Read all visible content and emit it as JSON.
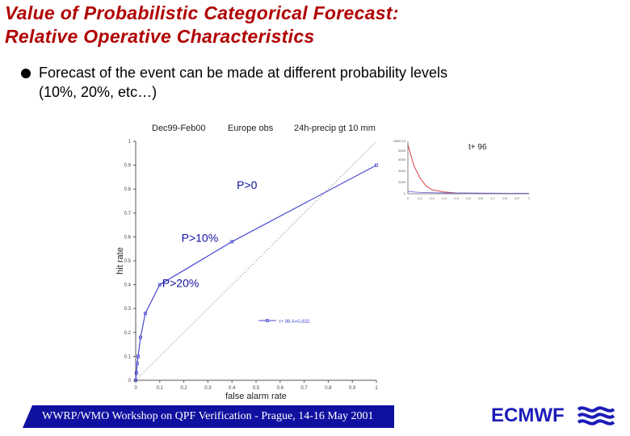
{
  "slide": {
    "title_line1": "Value of Probabilistic Categorical Forecast:",
    "title_line2": "Relative Operative Characteristics",
    "bullet_line1": "Forecast of the event can be made at different probability levels",
    "bullet_line2": "(10%, 20%, etc…)"
  },
  "footer": {
    "text": "WWRP/WMO Workshop on QPF Verification - Prague, 14-16 May 2001",
    "brand": "ECMWF",
    "colors": {
      "bar": "#1010a0",
      "brand": "#1c1cb8",
      "title": "#b00000"
    }
  },
  "chart_data": [
    {
      "type": "line",
      "title_parts": [
        "Dec99-Feb00",
        "Europe  obs",
        "24h-precip gt 10 mm"
      ],
      "xlabel": "false alarm rate",
      "ylabel": "hit rate",
      "xlim": [
        0,
        1
      ],
      "ylim": [
        0,
        1
      ],
      "x_ticks": [
        "0",
        "0.1",
        "0.2",
        "0.3",
        "0.4",
        "0.5",
        "0.6",
        "0.7",
        "0.8",
        "0.9",
        "1"
      ],
      "y_ticks": [
        "0",
        "0.1",
        "0.2",
        "0.3",
        "0.4",
        "0.5",
        "0.6",
        "0.7",
        "0.8",
        "0.9",
        "1"
      ],
      "series": [
        {
          "name": "t+ 96  A=0.832",
          "color": "#4a4ad0",
          "x": [
            0,
            0.003,
            0.006,
            0.01,
            0.02,
            0.04,
            0.1,
            0.4,
            1
          ],
          "y": [
            0,
            0.03,
            0.07,
            0.1,
            0.18,
            0.28,
            0.4,
            0.58,
            0.9
          ]
        }
      ],
      "diagonal": true,
      "annotations": [
        {
          "text": "P>0",
          "x": 0.42,
          "y": 0.8
        },
        {
          "text": "P>10%",
          "x": 0.19,
          "y": 0.58
        },
        {
          "text": "P>20%",
          "x": 0.11,
          "y": 0.39
        }
      ]
    },
    {
      "type": "line",
      "title": "t+ 96",
      "inset": true,
      "y_tick_labels": [
        "0",
        "2000",
        "3000",
        "4000",
        "5000",
        "6000 10"
      ],
      "x_tick_labels": [
        "0",
        "0.1",
        "0.2",
        "0.3",
        "0.4",
        "0.5",
        "0.6",
        "0.7",
        "0.8",
        "0.9",
        "1"
      ],
      "xlim": [
        0,
        1
      ],
      "ylim": [
        0,
        6000
      ],
      "series": [
        {
          "name": "red",
          "color": "#d03030",
          "x": [
            0,
            0.05,
            0.1,
            0.15,
            0.2,
            0.3,
            0.4,
            0.6,
            1
          ],
          "y": [
            5600,
            3200,
            1800,
            900,
            450,
            200,
            100,
            60,
            40
          ]
        },
        {
          "name": "blue",
          "color": "#6a6ad8",
          "x": [
            0,
            0.05,
            0.1,
            0.2,
            0.4,
            1
          ],
          "y": [
            300,
            200,
            160,
            120,
            80,
            50
          ]
        }
      ]
    }
  ]
}
